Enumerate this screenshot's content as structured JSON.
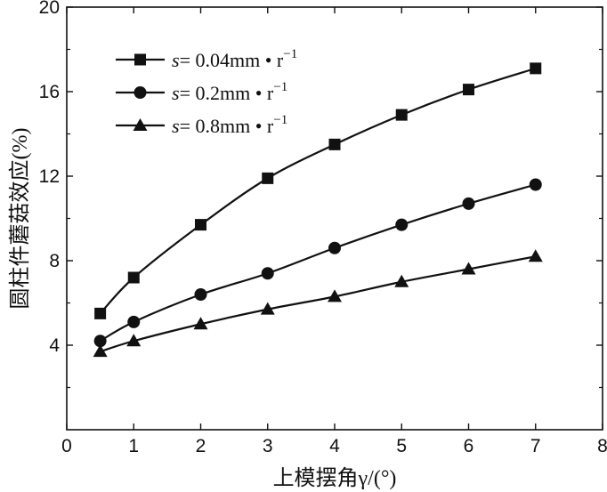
{
  "chart_data": {
    "type": "line",
    "xlabel": "上模摆角γ/(°)",
    "ylabel": "圆柱件蘑菇效应(%)",
    "xlim": [
      0,
      8
    ],
    "ylim": [
      0,
      20
    ],
    "x_ticks": [
      0,
      1,
      2,
      3,
      4,
      5,
      6,
      7,
      8
    ],
    "y_ticks": [
      4,
      8,
      12,
      16,
      20
    ],
    "grid": false,
    "legend_position": "top-left",
    "x": [
      0.5,
      1,
      2,
      3,
      4,
      5,
      6,
      7
    ],
    "series": [
      {
        "name": "s = 0.04mm • r⁻¹",
        "legend_var": "s",
        "legend_rest": "= 0.04mm • r",
        "legend_sup": "−1",
        "marker": "square",
        "values": [
          5.5,
          7.2,
          9.7,
          11.9,
          13.5,
          14.9,
          16.1,
          17.1
        ]
      },
      {
        "name": "s = 0.2mm • r⁻¹",
        "legend_var": "s",
        "legend_rest": "= 0.2mm • r",
        "legend_sup": "−1",
        "marker": "circle",
        "values": [
          4.2,
          5.1,
          6.4,
          7.4,
          8.6,
          9.7,
          10.7,
          11.6
        ]
      },
      {
        "name": "s = 0.8mm • r⁻¹",
        "legend_var": "s",
        "legend_rest": "= 0.8mm • r",
        "legend_sup": "−1",
        "marker": "triangle",
        "values": [
          3.7,
          4.2,
          5.0,
          5.7,
          6.3,
          7.0,
          7.6,
          8.2
        ]
      }
    ]
  }
}
